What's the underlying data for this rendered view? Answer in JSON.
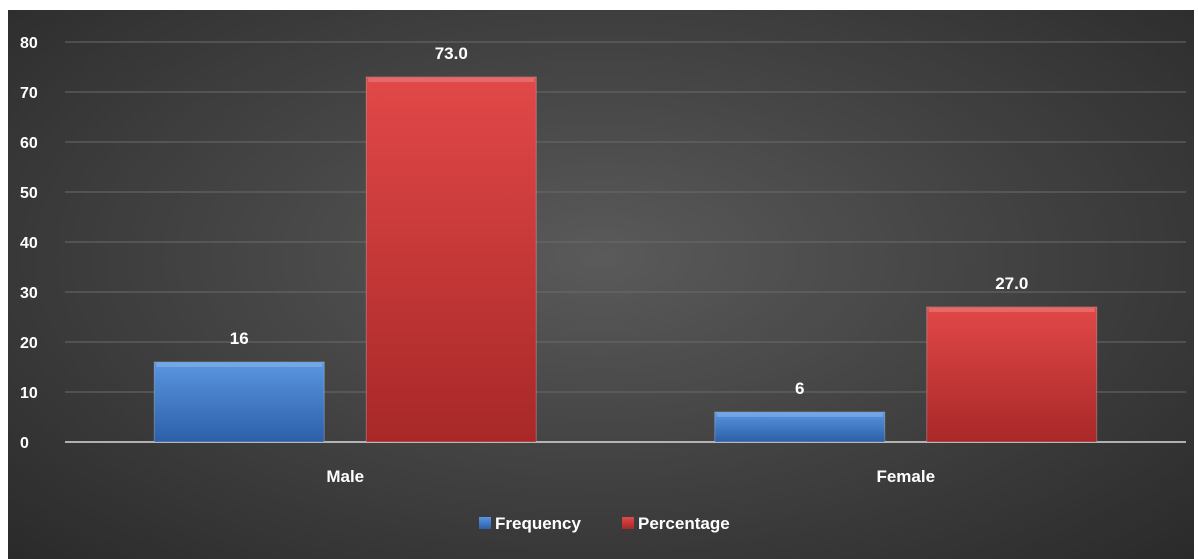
{
  "chart_data": {
    "type": "bar",
    "categories": [
      "Male",
      "Female"
    ],
    "series": [
      {
        "name": "Frequency",
        "values": [
          16,
          6
        ],
        "labels": [
          "16",
          "6"
        ],
        "color": "#3a78c8"
      },
      {
        "name": "Percentage",
        "values": [
          73.0,
          27.0
        ],
        "labels": [
          "73.0",
          "27.0"
        ],
        "color": "#d23a3a"
      }
    ],
    "y_ticks": [
      "0",
      "10",
      "20",
      "30",
      "40",
      "50",
      "60",
      "70",
      "80"
    ],
    "ylim": [
      0,
      80
    ],
    "grid": true,
    "legend_position": "bottom",
    "background": "#444444"
  }
}
